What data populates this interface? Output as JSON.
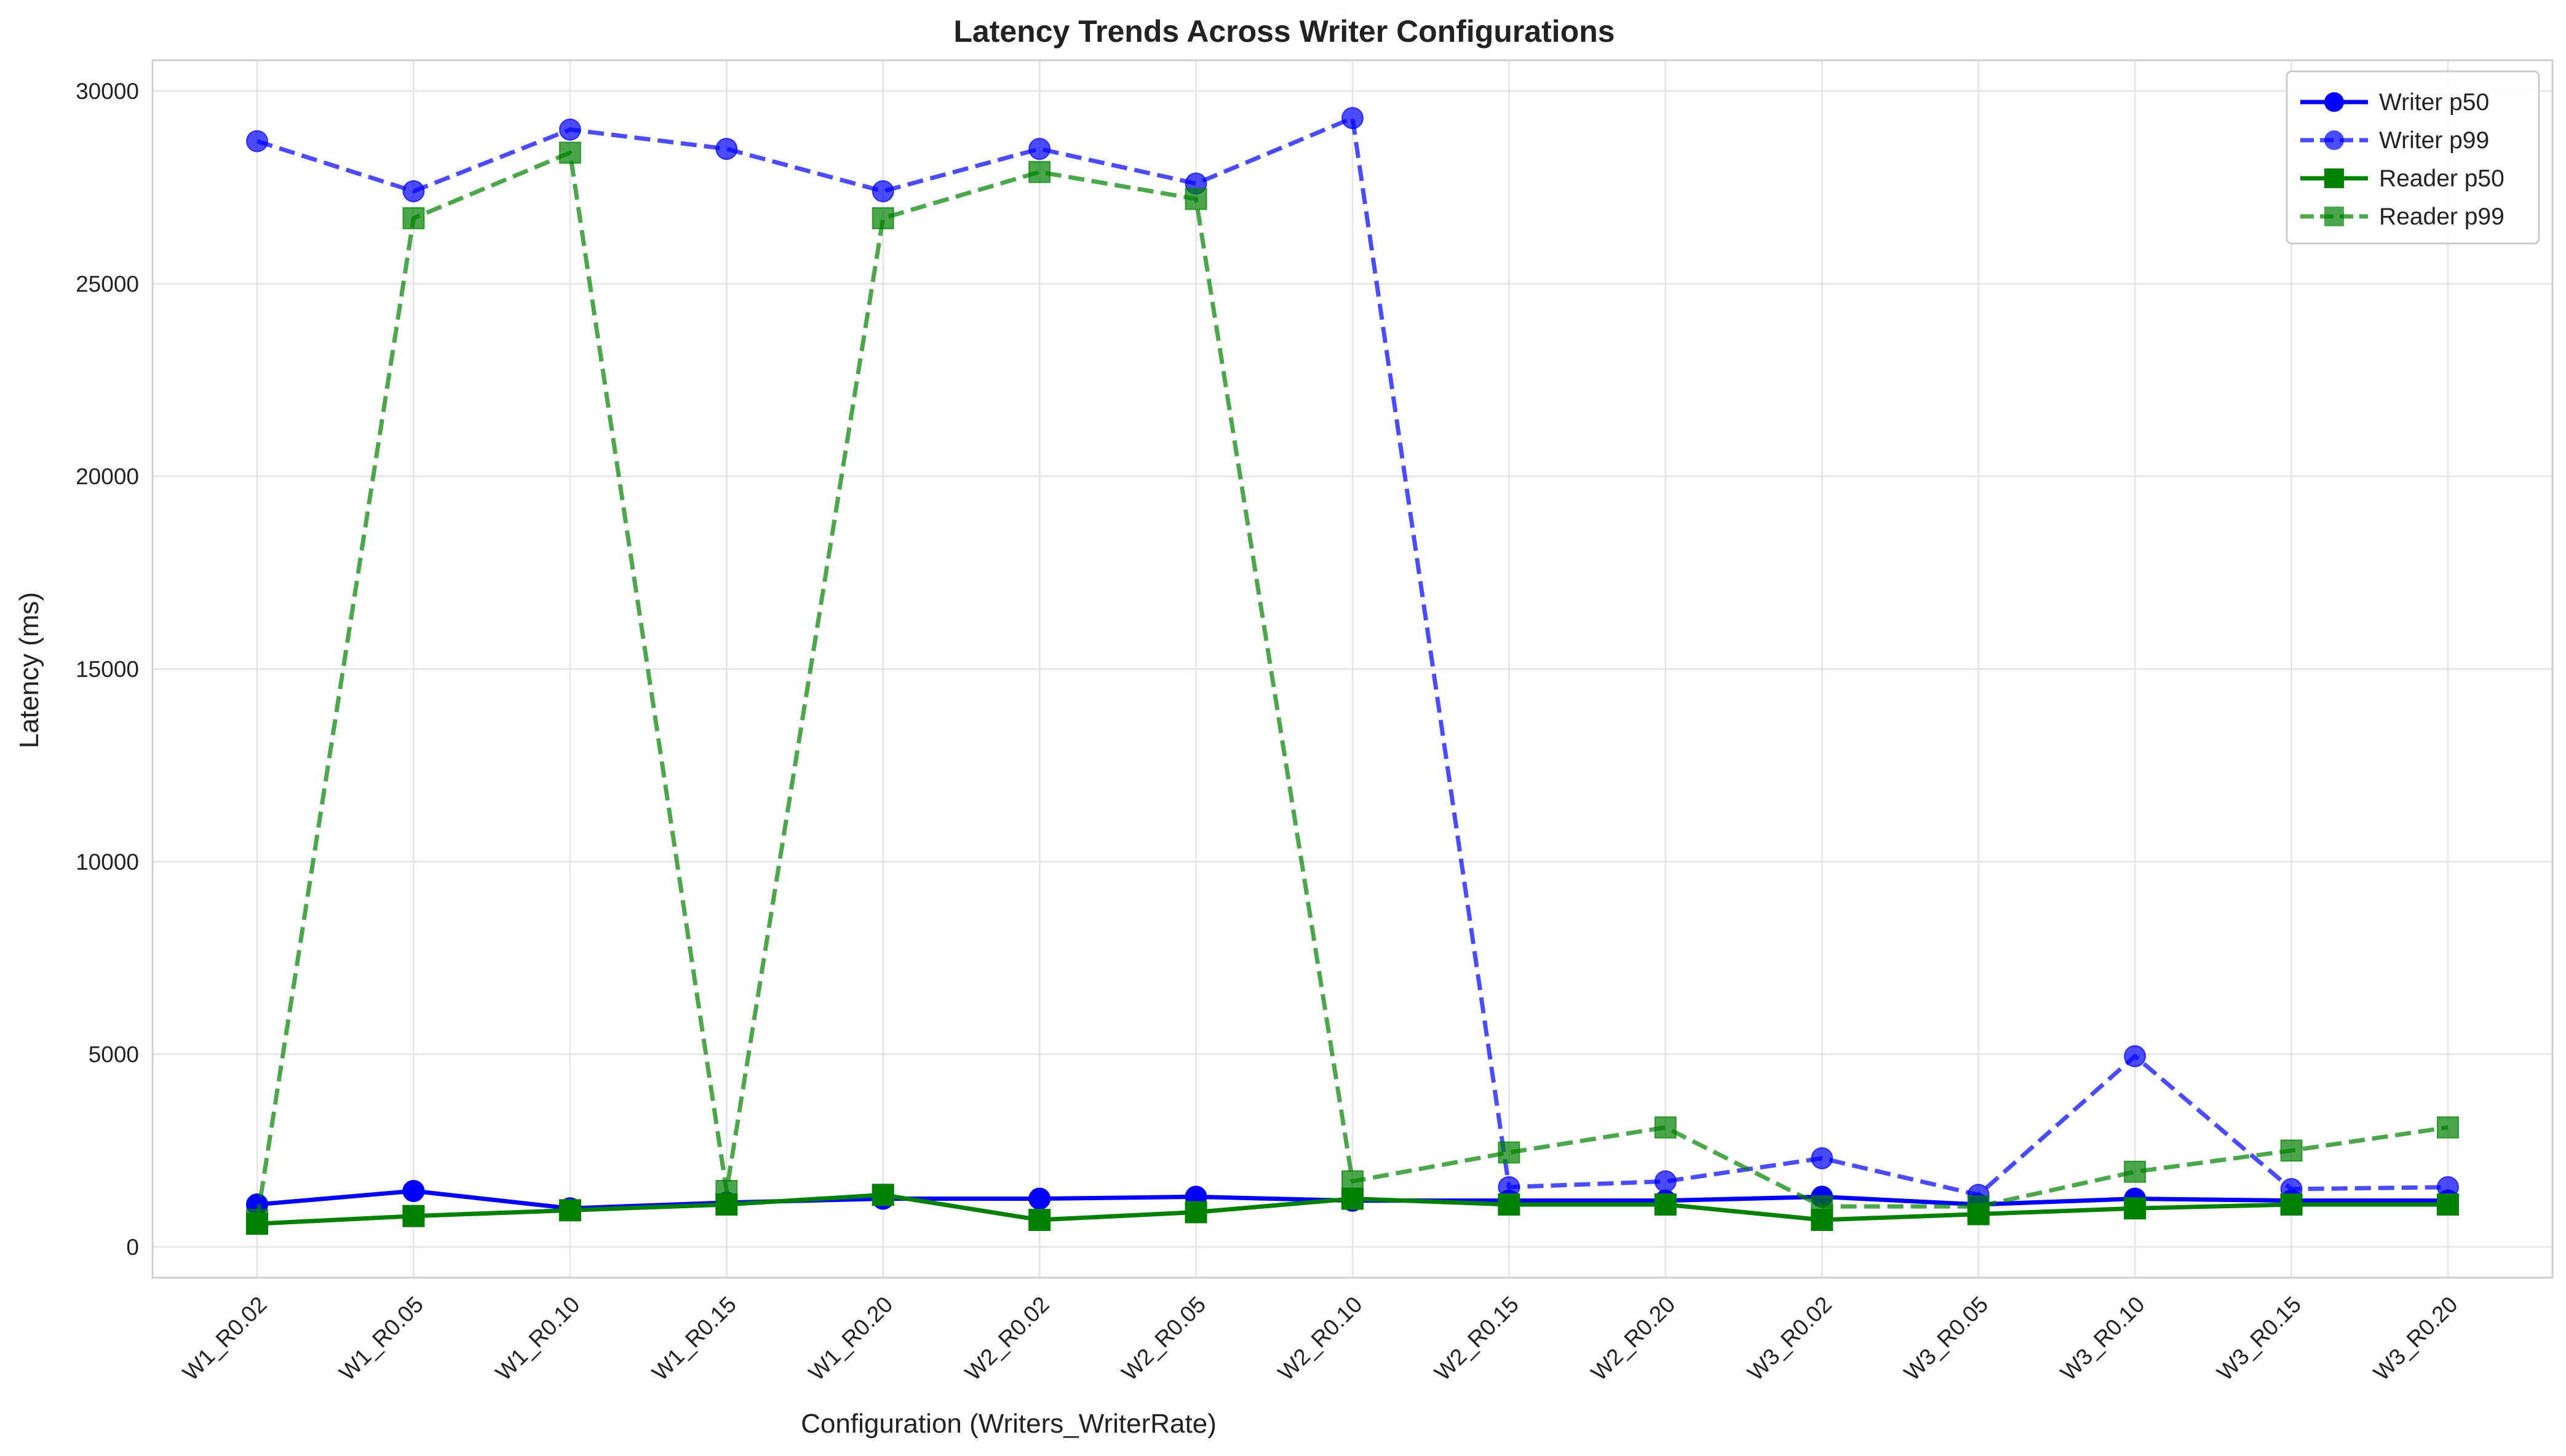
{
  "chart_data": {
    "type": "line",
    "title": "Latency Trends Across Writer Configurations",
    "xlabel": "Configuration (Writers_WriterRate)",
    "ylabel": "Latency (ms)",
    "ylim": [
      -800,
      30800
    ],
    "yticks": [
      0,
      5000,
      10000,
      15000,
      20000,
      25000,
      30000
    ],
    "grid": true,
    "legend_position": "top-right",
    "categories": [
      "W1_R0.02",
      "W1_R0.05",
      "W1_R0.10",
      "W1_R0.15",
      "W1_R0.20",
      "W2_R0.02",
      "W2_R0.05",
      "W2_R0.10",
      "W2_R0.15",
      "W2_R0.20",
      "W3_R0.02",
      "W3_R0.05",
      "W3_R0.10",
      "W3_R0.15",
      "W3_R0.20"
    ],
    "series": [
      {
        "name": "Writer p50",
        "color": "#0000ff",
        "marker": "circle",
        "dash": "solid",
        "opacity": 1.0,
        "values": [
          1100,
          1450,
          1000,
          1150,
          1250,
          1250,
          1300,
          1200,
          1200,
          1200,
          1300,
          1100,
          1250,
          1200,
          1200
        ]
      },
      {
        "name": "Writer p99",
        "color": "#0000ff",
        "marker": "circle",
        "dash": "dashed",
        "opacity": 0.7,
        "values": [
          28700,
          27400,
          29000,
          28500,
          27400,
          28500,
          27600,
          29300,
          1550,
          1700,
          2300,
          1350,
          4950,
          1500,
          1550
        ]
      },
      {
        "name": "Reader p50",
        "color": "#008000",
        "marker": "square",
        "dash": "solid",
        "opacity": 1.0,
        "values": [
          600,
          800,
          950,
          1100,
          1350,
          700,
          900,
          1250,
          1100,
          1100,
          700,
          850,
          1000,
          1100,
          1100
        ]
      },
      {
        "name": "Reader p99",
        "color": "#008000",
        "marker": "square",
        "dash": "dashed",
        "opacity": 0.7,
        "values": [
          700,
          26700,
          28400,
          1450,
          26700,
          27900,
          27200,
          1700,
          2450,
          3100,
          1050,
          1050,
          1950,
          2500,
          3100
        ]
      }
    ]
  }
}
